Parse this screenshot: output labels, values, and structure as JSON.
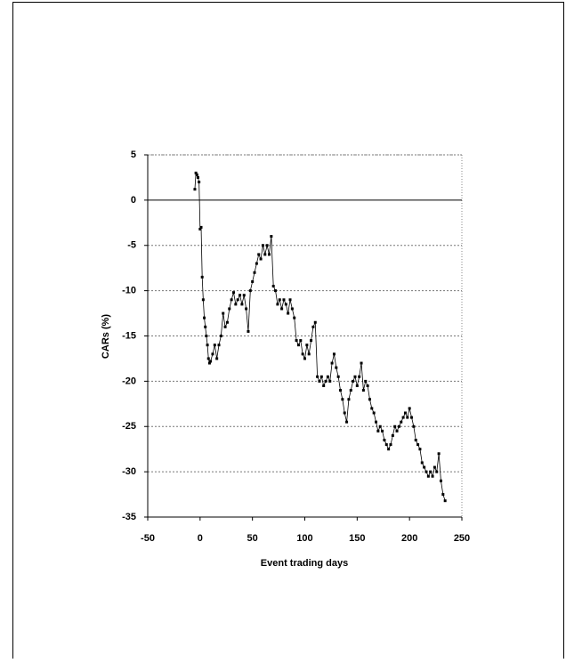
{
  "chart_data": {
    "type": "line",
    "xlabel": "Event trading days",
    "ylabel": "CARs (%)",
    "x": [
      -5,
      -4,
      -3,
      -2,
      -1,
      0,
      1,
      2,
      3,
      4,
      5,
      6,
      7,
      8,
      9,
      10,
      12,
      14,
      16,
      18,
      20,
      22,
      24,
      26,
      28,
      30,
      32,
      34,
      36,
      38,
      40,
      42,
      44,
      46,
      48,
      50,
      52,
      54,
      56,
      58,
      60,
      62,
      64,
      66,
      68,
      70,
      72,
      74,
      76,
      78,
      80,
      82,
      84,
      86,
      88,
      90,
      92,
      94,
      96,
      98,
      100,
      102,
      104,
      106,
      108,
      110,
      112,
      114,
      116,
      118,
      120,
      122,
      124,
      126,
      128,
      130,
      132,
      134,
      136,
      138,
      140,
      142,
      144,
      146,
      148,
      150,
      152,
      154,
      156,
      158,
      160,
      162,
      164,
      166,
      168,
      170,
      172,
      174,
      176,
      178,
      180,
      182,
      184,
      186,
      188,
      190,
      192,
      194,
      196,
      198,
      200,
      202,
      204,
      206,
      208,
      210,
      212,
      214,
      216,
      218,
      220,
      222,
      224,
      226,
      228,
      230,
      232,
      234
    ],
    "series": [
      {
        "name": "CARs",
        "color": "#000000",
        "values": [
          1.2,
          3,
          2.8,
          2.5,
          2,
          -3.2,
          -3,
          -8.5,
          -11,
          -13,
          -14,
          -15,
          -16,
          -17.5,
          -18,
          -17.8,
          -17,
          -16,
          -17.5,
          -16,
          -15,
          -12.5,
          -14,
          -13.5,
          -12,
          -11,
          -10.2,
          -11.5,
          -11,
          -10.5,
          -11.5,
          -10.5,
          -12,
          -14.5,
          -10,
          -9,
          -8,
          -7,
          -6,
          -6.5,
          -5,
          -6,
          -5,
          -6,
          -4,
          -9.5,
          -10,
          -11.5,
          -11,
          -12,
          -11,
          -11.5,
          -12.5,
          -11,
          -12,
          -13,
          -15.5,
          -16,
          -15.5,
          -17,
          -17.5,
          -16,
          -17,
          -15.5,
          -14,
          -13.5,
          -19.5,
          -20,
          -19.5,
          -20.5,
          -20,
          -19.5,
          -20,
          -18,
          -17,
          -18.5,
          -19.5,
          -21,
          -22,
          -23.5,
          -24.5,
          -22,
          -21,
          -20,
          -19.5,
          -20.5,
          -19.5,
          -18,
          -21,
          -20,
          -20.5,
          -22,
          -23,
          -23.5,
          -24.5,
          -25.5,
          -25,
          -25.5,
          -26.5,
          -27,
          -27.5,
          -27,
          -26,
          -25,
          -25.5,
          -25,
          -24.5,
          -24,
          -23.5,
          -24,
          -23,
          -24,
          -25,
          -26.5,
          -27,
          -27.5,
          -29,
          -29.5,
          -30,
          -30.5,
          -30,
          -30.5,
          -29.5,
          -30,
          -28,
          -31,
          -32.5,
          -33.2
        ]
      }
    ],
    "xlim": [
      -50,
      250
    ],
    "xticks": [
      -50,
      0,
      50,
      100,
      150,
      200,
      250
    ],
    "ylim": [
      -35,
      5
    ],
    "yticks": [
      5,
      0,
      -5,
      -10,
      -15,
      -20,
      -25,
      -30,
      -35
    ],
    "grid": true
  }
}
